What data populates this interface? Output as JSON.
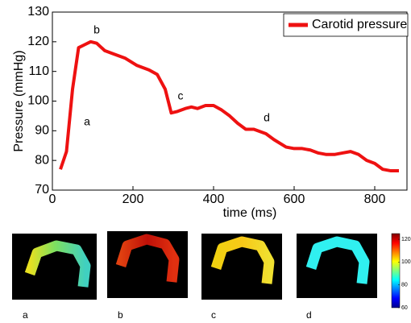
{
  "chart_data": {
    "type": "line",
    "x": [
      20,
      35,
      50,
      65,
      80,
      95,
      110,
      130,
      150,
      180,
      210,
      240,
      260,
      280,
      295,
      310,
      330,
      345,
      360,
      380,
      400,
      420,
      440,
      460,
      480,
      500,
      530,
      550,
      580,
      600,
      620,
      640,
      660,
      680,
      700,
      720,
      740,
      760,
      780,
      800,
      820,
      840,
      860
    ],
    "series": [
      {
        "name": "Carotid pressure",
        "color": "#ee1111",
        "values": [
          77,
          83,
          104,
          118,
          119,
          120,
          119.5,
          117,
          116,
          114.5,
          112,
          110.5,
          109,
          104,
          96,
          96.5,
          97.5,
          98,
          97.5,
          98.5,
          98.5,
          97,
          95,
          92.5,
          90.5,
          90.5,
          89,
          87,
          84.5,
          84,
          84,
          83.5,
          82.5,
          82,
          82,
          82.5,
          83,
          82,
          80,
          79,
          77,
          76.5,
          76.5
        ]
      }
    ],
    "xlim": [
      0,
      880
    ],
    "ylim": [
      70,
      130
    ],
    "xticks": [
      0,
      200,
      400,
      600,
      800
    ],
    "yticks": [
      70,
      80,
      90,
      100,
      110,
      120,
      130
    ],
    "xlabel": "time (ms)",
    "ylabel": "Pressure (mmHg)",
    "legend": "upper right",
    "annotations": [
      "a",
      "b",
      "c",
      "d"
    ]
  },
  "panels": {
    "labels": [
      "a",
      "b",
      "c",
      "d"
    ],
    "colorbar": {
      "lim": [
        60,
        125
      ],
      "ticks": [
        60,
        80,
        100,
        120
      ]
    }
  }
}
